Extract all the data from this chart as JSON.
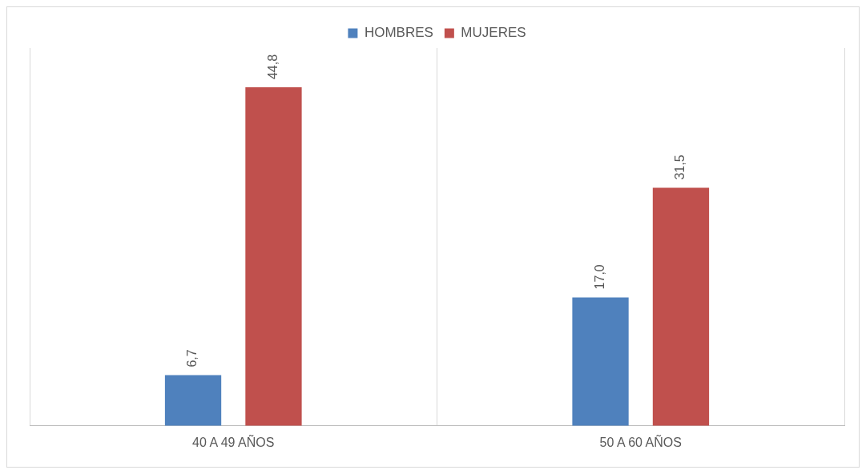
{
  "chart_data": {
    "type": "bar",
    "categories": [
      "40 A 49 AÑOS",
      "50 A 60 AÑOS"
    ],
    "series": [
      {
        "name": "HOMBRES",
        "color": "#4f81bd",
        "values": [
          6.7,
          17.0
        ],
        "value_labels": [
          "6,7",
          "17,0"
        ]
      },
      {
        "name": "MUJERES",
        "color": "#c0504d",
        "values": [
          44.8,
          31.5
        ],
        "value_labels": [
          "44,8",
          "31,5"
        ]
      }
    ],
    "grid": "x",
    "legend": "top"
  }
}
